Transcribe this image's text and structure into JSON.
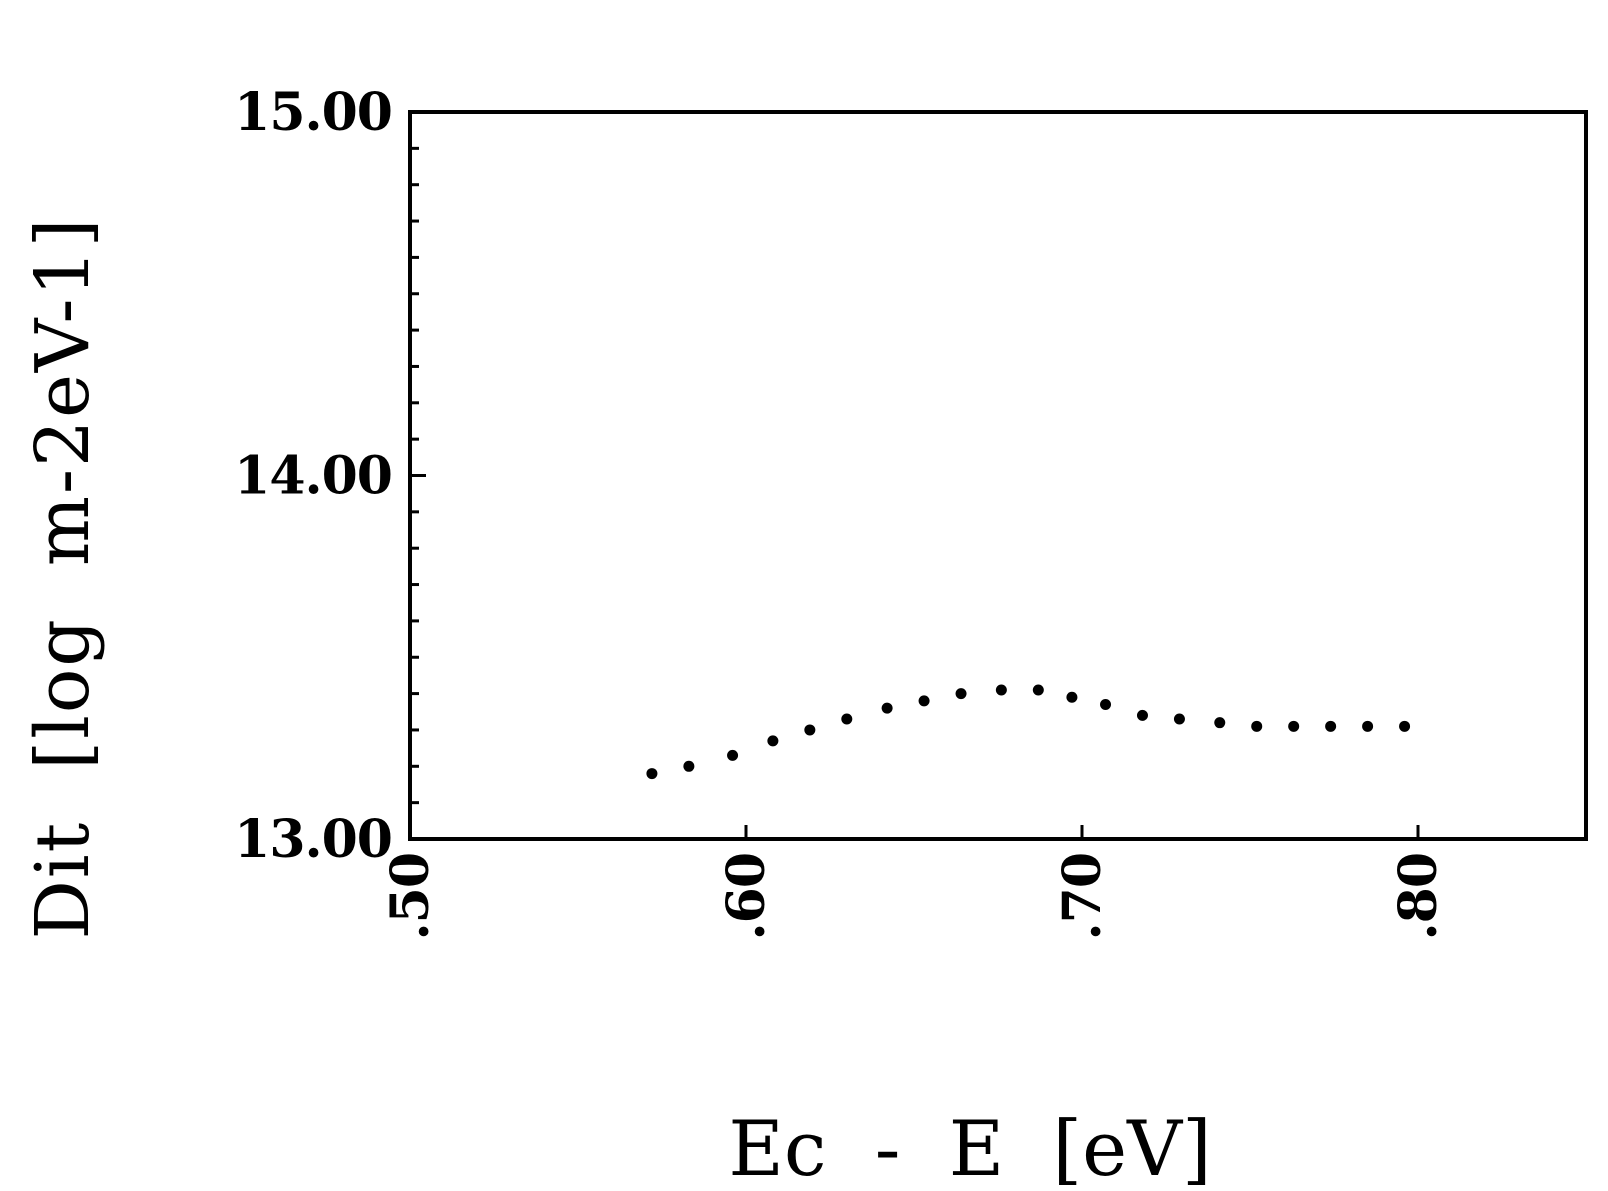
{
  "chart_data": {
    "type": "scatter",
    "title": "",
    "xlabel": "Ec  -  E  [eV]",
    "ylabel": "Dit  [log  m-2eV-1]",
    "xlim": [
      0.5,
      0.85
    ],
    "ylim": [
      13.0,
      15.0
    ],
    "x_ticks": [
      0.5,
      0.6,
      0.7,
      0.8
    ],
    "x_tick_labels": [
      ".50",
      ".60",
      ".70",
      ".80"
    ],
    "y_ticks": [
      13.0,
      14.0,
      15.0
    ],
    "y_tick_labels": [
      "13.00",
      "14.00",
      "15.00"
    ],
    "y_minor_step": 0.1,
    "grid": false,
    "legend": "none",
    "point_color": "#000000",
    "series": [
      {
        "x": [
          0.572,
          0.583,
          0.596,
          0.608,
          0.619,
          0.63,
          0.642,
          0.653,
          0.664,
          0.676,
          0.687,
          0.697,
          0.707,
          0.718,
          0.729,
          0.741,
          0.752,
          0.763,
          0.774,
          0.785,
          0.796
        ],
        "y": [
          13.18,
          13.2,
          13.23,
          13.27,
          13.3,
          13.33,
          13.36,
          13.38,
          13.4,
          13.41,
          13.41,
          13.39,
          13.37,
          13.34,
          13.33,
          13.32,
          13.31,
          13.31,
          13.31,
          13.31,
          13.31
        ]
      }
    ]
  }
}
